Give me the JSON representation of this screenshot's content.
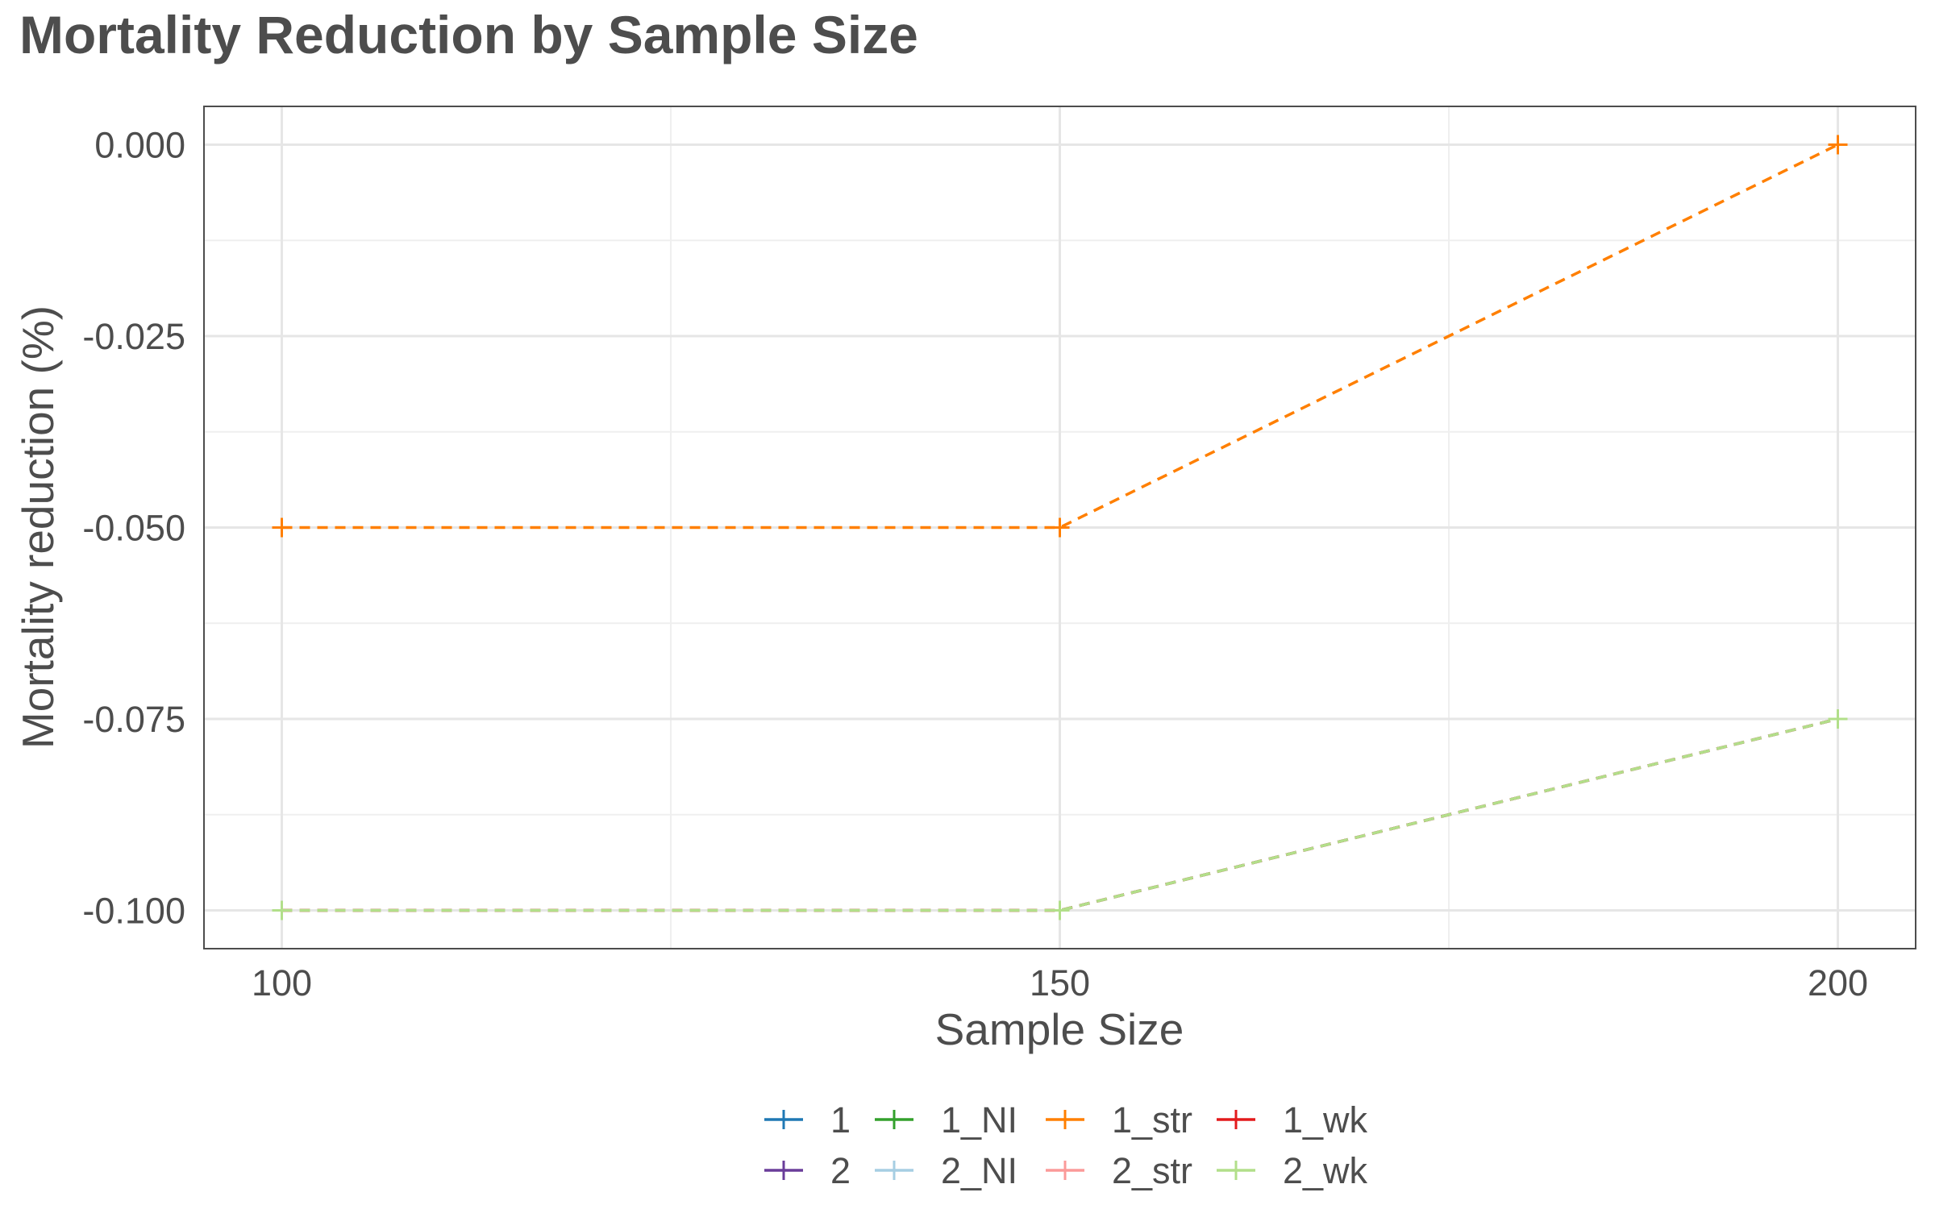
{
  "chart_data": {
    "type": "line",
    "title": "Mortality Reduction by Sample Size",
    "xlabel": "Sample Size",
    "ylabel": "Mortality reduction (%)",
    "x": [
      100,
      150,
      200
    ],
    "x_ticks": [
      100,
      150,
      200
    ],
    "x_tick_labels": [
      "100",
      "150",
      "200"
    ],
    "xlim": [
      95,
      205
    ],
    "y_ticks": [
      0.0,
      -0.025,
      -0.05,
      -0.075,
      -0.1
    ],
    "y_tick_labels": [
      "0.000",
      "-0.025",
      "-0.050",
      "-0.075",
      "-0.100"
    ],
    "ylim": [
      -0.105,
      0.005
    ],
    "grid": true,
    "line_style": "dashed",
    "marker": "plus",
    "legend_position": "bottom",
    "series": [
      {
        "name": "1",
        "color": "#1f78b4",
        "values": [
          -0.1,
          -0.1,
          -0.075
        ]
      },
      {
        "name": "2",
        "color": "#6a3d9a",
        "values": [
          -0.1,
          -0.1,
          -0.075
        ]
      },
      {
        "name": "1_NI",
        "color": "#33a02c",
        "values": [
          -0.1,
          -0.1,
          -0.075
        ]
      },
      {
        "name": "2_NI",
        "color": "#a6cee3",
        "values": [
          -0.1,
          -0.1,
          -0.075
        ]
      },
      {
        "name": "1_str",
        "color": "#ff7f00",
        "values": [
          -0.05,
          -0.05,
          0.0
        ]
      },
      {
        "name": "2_str",
        "color": "#fb9a99",
        "values": [
          -0.1,
          -0.1,
          -0.075
        ]
      },
      {
        "name": "1_wk",
        "color": "#e31a1c",
        "values": [
          -0.1,
          -0.1,
          -0.075
        ]
      },
      {
        "name": "2_wk",
        "color": "#b2df8a",
        "values": [
          -0.1,
          -0.1,
          -0.075
        ]
      }
    ]
  }
}
